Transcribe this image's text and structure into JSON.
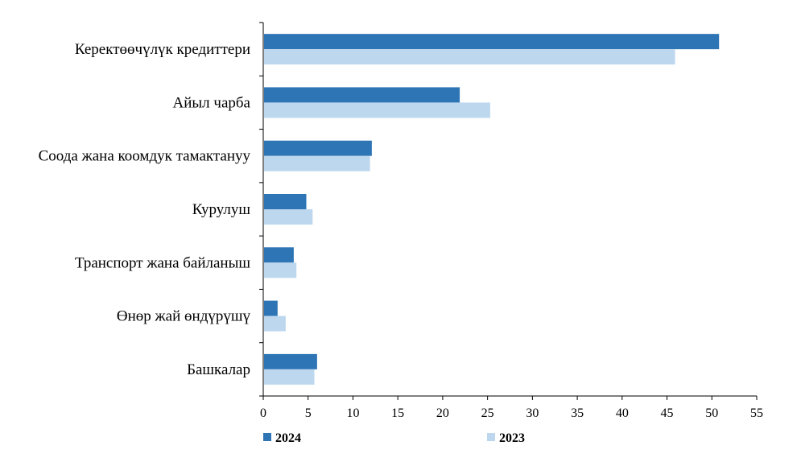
{
  "chart_data": {
    "type": "bar",
    "orientation": "horizontal",
    "title": "",
    "xlabel": "",
    "ylabel": "",
    "categories": [
      "Керектөөчүлүк кредиттери",
      "Айыл чарба",
      "Соода жана коомдук тамактануу",
      "Курулуш",
      "Транспорт жана байланыш",
      "Өнөр жай өндүрүшү",
      "Башкалар"
    ],
    "series": [
      {
        "name": "2024",
        "color": "#2e75b6",
        "values": [
          50.8,
          21.9,
          12.1,
          4.8,
          3.4,
          1.6,
          6.0
        ]
      },
      {
        "name": "2023",
        "color": "#bdd7ee",
        "values": [
          45.9,
          25.3,
          11.9,
          5.5,
          3.7,
          2.5,
          5.7
        ]
      }
    ],
    "xlim": [
      0,
      55
    ],
    "xticks": [
      "0",
      "5",
      "10",
      "15",
      "20",
      "25",
      "30",
      "35",
      "40",
      "45",
      "50",
      "55"
    ],
    "grid": false,
    "legend_position": "bottom"
  }
}
